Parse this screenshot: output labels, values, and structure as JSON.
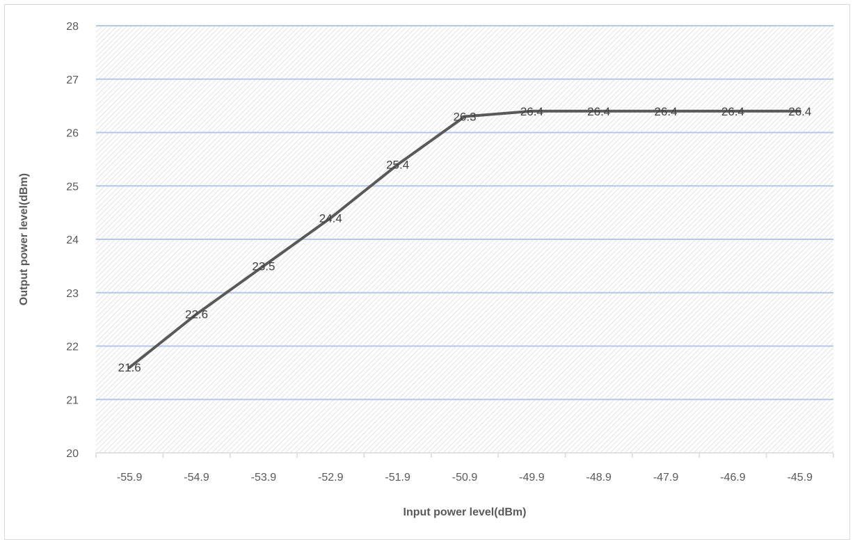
{
  "chart_data": {
    "type": "line",
    "title": "",
    "xlabel": "Input power level(dBm)",
    "ylabel": "Output power level(dBm)",
    "categories": [
      "-55.9",
      "-54.9",
      "-53.9",
      "-52.9",
      "-51.9",
      "-50.9",
      "-49.9",
      "-48.9",
      "-47.9",
      "-46.9",
      "-45.9"
    ],
    "series": [
      {
        "values": [
          21.6,
          22.6,
          23.5,
          24.4,
          25.4,
          26.3,
          26.4,
          26.4,
          26.4,
          26.4,
          26.4
        ],
        "color": "#595959",
        "data_labels": [
          "21.6",
          "22.6",
          "23.5",
          "24.4",
          "25.4",
          "26.3",
          "26.4",
          "26.4",
          "26.4",
          "26.4",
          "26.4"
        ]
      }
    ],
    "ylim": [
      20,
      28
    ],
    "yticks": [
      "20",
      "21",
      "22",
      "23",
      "24",
      "25",
      "26",
      "27",
      "28"
    ],
    "grid": true,
    "legend": "none",
    "colors": {
      "line": "#595959",
      "gridline": "#b4c7e7",
      "plot_pattern": "#e0e0e0",
      "axis": "#d9d9d9"
    }
  }
}
